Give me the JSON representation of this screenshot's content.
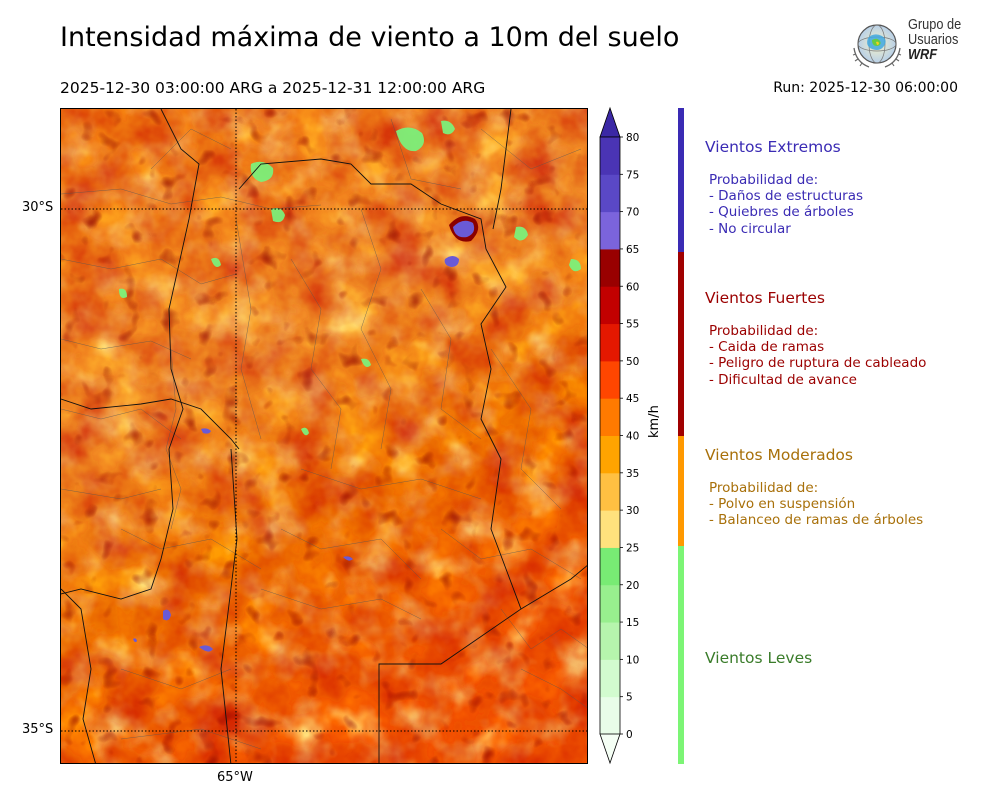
{
  "header": {
    "title": "Intensidad máxima de viento a 10m del suelo",
    "period": "2025-12-30 03:00:00 ARG  a  2025-12-31 12:00:00 ARG",
    "run": "Run: 2025-12-30 06:00:00"
  },
  "logo": {
    "line1": "Grupo de",
    "line2": "Usuarios",
    "line3": "WRF",
    "icon": "globe-emblem-icon"
  },
  "map": {
    "lat_labels": [
      "30°S",
      "35°S"
    ],
    "lon_labels": [
      "65°W"
    ],
    "field_description": "max-10m-wind-intensity-shaded"
  },
  "colorbar": {
    "unit": "km/h",
    "ticks": [
      "0",
      "5",
      "10",
      "15",
      "20",
      "25",
      "30",
      "35",
      "40",
      "45",
      "50",
      "55",
      "60",
      "65",
      "70",
      "75",
      "80"
    ],
    "levels": [
      0,
      5,
      10,
      15,
      20,
      25,
      30,
      35,
      40,
      45,
      50,
      55,
      60,
      65,
      70,
      75,
      80
    ],
    "colors": [
      "#e8fde8",
      "#d2fbcf",
      "#b6f5ad",
      "#98ef8e",
      "#78eb74",
      "#ffe27d",
      "#ffc042",
      "#ffa400",
      "#ff7a00",
      "#ff4600",
      "#e41800",
      "#c20000",
      "#990000",
      "#7b64dc",
      "#5a48c6",
      "#4a34b4"
    ],
    "under_color": "#f5fff5",
    "over_color": "#3b28a5"
  },
  "legend": [
    {
      "title": "Vientos Extremos",
      "color": "#3a2bb4",
      "lines": [
        "Probabilidad de:",
        "- Daños de estructuras",
        "- Quiebres de árboles",
        "- No circular"
      ]
    },
    {
      "title": "Vientos Fuertes",
      "color": "#9b0000",
      "lines": [
        "Probabilidad de:",
        "- Caida de ramas",
        "- Peligro de ruptura de cableado",
        "- Dificultad de avance"
      ]
    },
    {
      "title": "Vientos Moderados",
      "color": "#a8700a",
      "lines": [
        "Probabilidad de:",
        "- Polvo en suspensión",
        "- Balanceo de ramas de árboles"
      ]
    },
    {
      "title": "Vientos Leves",
      "color": "#3a7c2a",
      "lines": []
    }
  ],
  "legend_bar_colors": [
    "#3a2bb4",
    "#a00000",
    "#ff9900",
    "#7cf575"
  ]
}
